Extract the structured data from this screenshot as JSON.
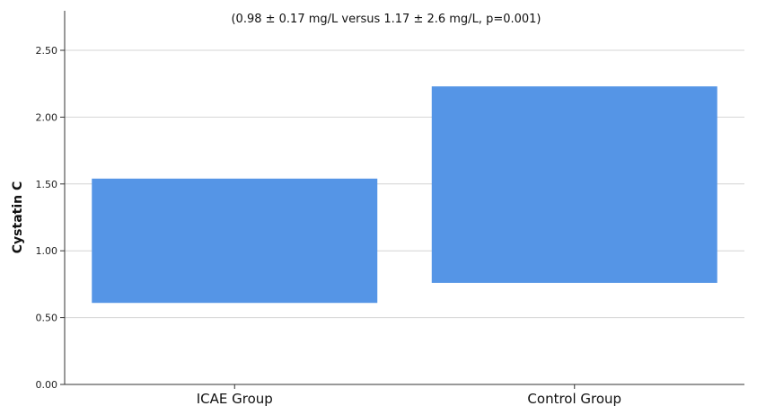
{
  "chart_data": {
    "type": "bar",
    "subtype": "floating-range",
    "categories": [
      "ICAE Group",
      "Control Group"
    ],
    "ranges": [
      {
        "low": 0.61,
        "high": 1.54
      },
      {
        "low": 0.76,
        "high": 2.23
      }
    ],
    "annotation": "(0.98 ± 0.17 mg/L versus 1.17 ± 2.6 mg/L, p=0.001)",
    "xlabel": "",
    "ylabel": "Cystatin C",
    "ylim": [
      0,
      2.5
    ],
    "yticks": [
      "0.00",
      "0.50",
      "1.00",
      "1.50",
      "2.00",
      "2.50"
    ],
    "grid": true,
    "bar_color": "#5595e6",
    "grid_color": "#d4d4d4",
    "axis_color": "#333333"
  }
}
